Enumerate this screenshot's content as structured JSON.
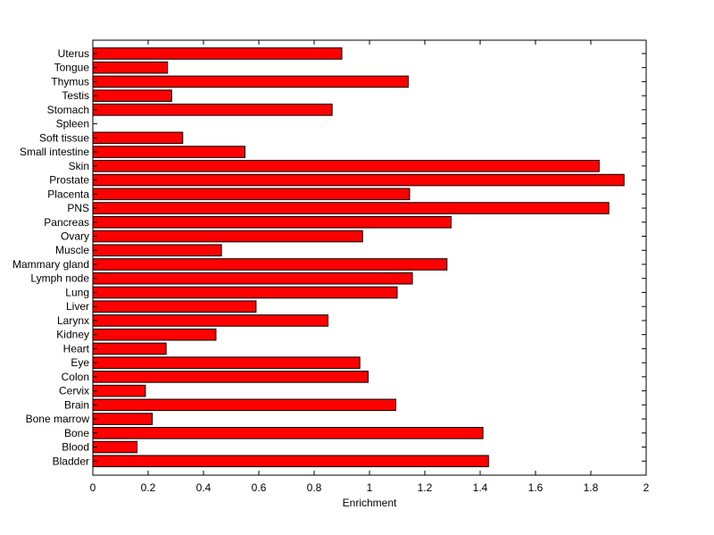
{
  "chart_data": {
    "type": "bar",
    "orientation": "horizontal",
    "title": "",
    "xlabel": "Enrichment",
    "ylabel": "",
    "xlim": [
      0,
      2
    ],
    "xticks": [
      "0",
      "0.2",
      "0.4",
      "0.6",
      "0.8",
      "1",
      "1.2",
      "1.4",
      "1.6",
      "1.8",
      "2"
    ],
    "grid": false,
    "legend": "none",
    "bar_color": "#ff0000",
    "categories": [
      "Uterus",
      "Tongue",
      "Thymus",
      "Testis",
      "Stomach",
      "Spleen",
      "Soft tissue",
      "Small intestine",
      "Skin",
      "Prostate",
      "Placenta",
      "PNS",
      "Pancreas",
      "Ovary",
      "Muscle",
      "Mammary gland",
      "Lymph node",
      "Lung",
      "Liver",
      "Larynx",
      "Kidney",
      "Heart",
      "Eye",
      "Colon",
      "Cervix",
      "Brain",
      "Bone marrow",
      "Bone",
      "Blood",
      "Bladder"
    ],
    "values": [
      0.9,
      0.27,
      1.14,
      0.285,
      0.865,
      0.0,
      0.325,
      0.55,
      1.83,
      1.92,
      1.145,
      1.865,
      1.295,
      0.975,
      0.465,
      1.28,
      1.155,
      1.1,
      0.59,
      0.85,
      0.445,
      0.265,
      0.965,
      0.995,
      0.19,
      1.095,
      0.215,
      1.41,
      0.16,
      1.43
    ]
  }
}
